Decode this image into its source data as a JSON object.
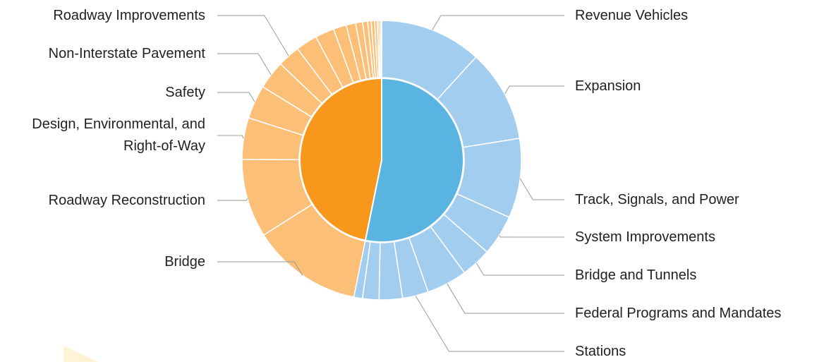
{
  "chart_data": {
    "type": "sunburst",
    "inner": {
      "values": [
        53.2,
        46.8
      ],
      "colors": [
        "#5ab4e2",
        "#f7981d"
      ]
    },
    "outer": [
      {
        "color": "#a3cdee",
        "categories": [
          "Revenue Vehicles",
          "Expansion",
          "Track, Signals, and Power",
          "System Improvements",
          "Bridge and Tunnels",
          "Federal Programs and Mandates",
          "Stations",
          null,
          null,
          null
        ],
        "values": [
          11.8,
          10.7,
          9.2,
          4.7,
          3.5,
          4.7,
          3.0,
          2.7,
          1.9,
          1.0
        ]
      },
      {
        "color": "#fcbf78",
        "categories": [
          "Bridge",
          "Roadway Reconstruction",
          "Design, Environmental, and Right-of-Way",
          "Safety",
          "Non-Interstate Pavement",
          "Roadway Improvements",
          null,
          null,
          null,
          null,
          null,
          null,
          null,
          null,
          null,
          null,
          null,
          null
        ],
        "values": [
          12.8,
          9.1,
          4.8,
          3.9,
          3.3,
          2.6,
          2.5,
          2.2,
          1.5,
          1.1,
          0.8,
          0.6,
          0.4,
          0.4,
          0.3,
          0.2,
          0.2,
          0.1
        ]
      }
    ]
  }
}
